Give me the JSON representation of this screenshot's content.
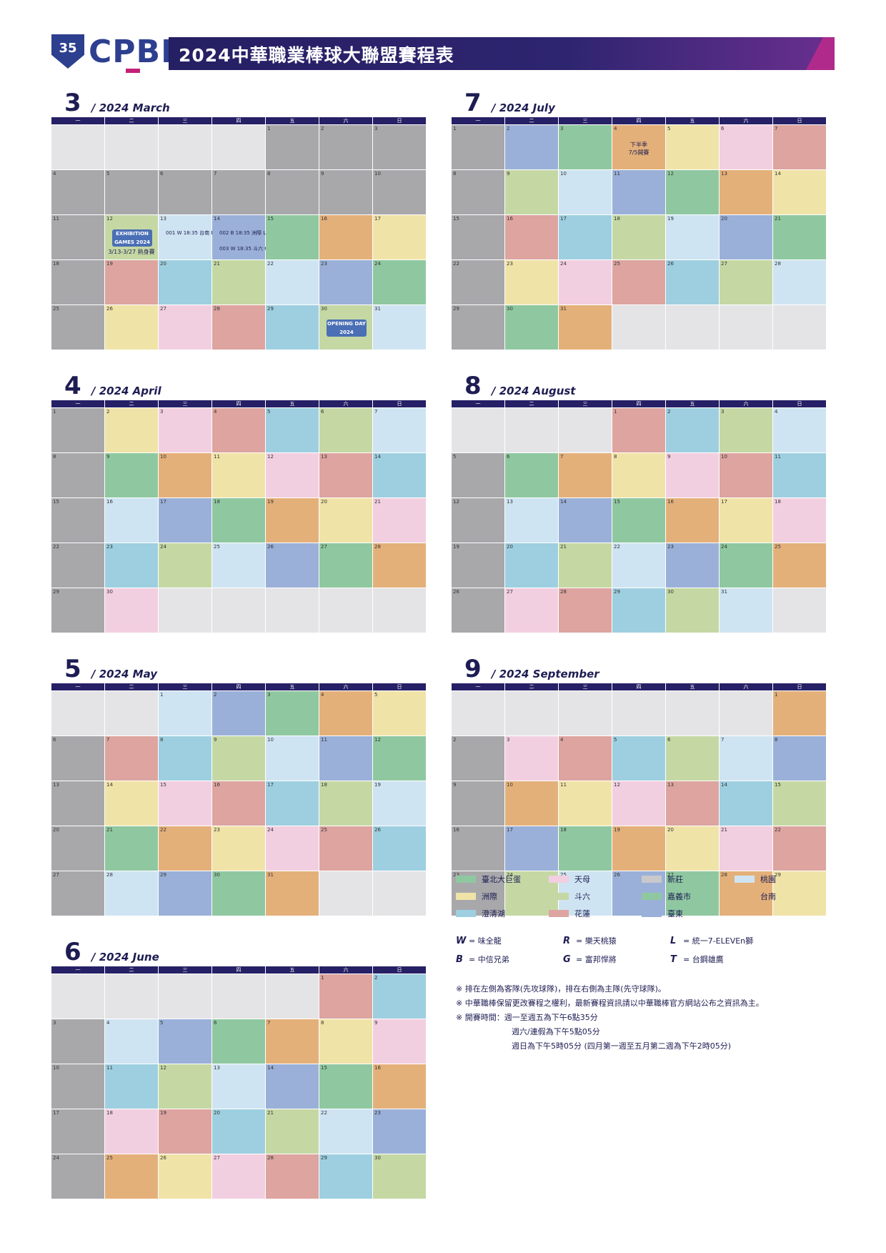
{
  "header": {
    "logo_text": "CPBL",
    "logo_badge": "35",
    "title": "2024中華職業棒球大聯盟賽程表"
  },
  "weekdays": [
    "一",
    "二",
    "三",
    "四",
    "五",
    "六",
    "日"
  ],
  "months": [
    {
      "num": "3",
      "name": "/ 2024 March"
    },
    {
      "num": "7",
      "name": "/ 2024 July"
    },
    {
      "num": "4",
      "name": "/ 2024 April"
    },
    {
      "num": "8",
      "name": "/ 2024 August"
    },
    {
      "num": "5",
      "name": "/ 2024 May"
    },
    {
      "num": "9",
      "name": "/ 2024 September"
    },
    {
      "num": "6",
      "name": "/ 2024 June"
    }
  ],
  "special": {
    "exhibition": "EXHIBITION GAMES 2024",
    "exhibition_note": "3/13-3/27 熱身賽",
    "opening": "OPENING DAY 2024",
    "second_half": "下半季\n7/5開賽"
  },
  "sample_games": {
    "g1": "001 W 18:35 台南 B",
    "g2": "002 B 18:35 洲際 L",
    "g3": "003 W 18:35 斗六 G"
  },
  "legend": {
    "venues": [
      {
        "name": "臺北大巨蛋",
        "color": "#8fc8a0"
      },
      {
        "name": "天母",
        "color": "#f2cfe0"
      },
      {
        "name": "新莊",
        "color": "#c9c9cb"
      },
      {
        "name": "桃園",
        "color": "#cfe4f2"
      },
      {
        "name": "洲際",
        "color": "#f0e3a8"
      },
      {
        "name": "斗六",
        "color": "#c5d8a4"
      },
      {
        "name": "嘉義市",
        "color": "#8fc8a0"
      },
      {
        "name": "台南",
        "color": "#e4b07a"
      },
      {
        "name": "澄清湖",
        "color": "#9dcfe0"
      },
      {
        "name": "花蓮",
        "color": "#dda4a0"
      },
      {
        "name": "臺東",
        "color": "#9ab0d8"
      }
    ],
    "teams": [
      {
        "symbol": "W",
        "name": "= 味全龍"
      },
      {
        "symbol": "R",
        "name": "= 樂天桃猿"
      },
      {
        "symbol": "L",
        "name": "= 統一7-ELEVEn獅"
      },
      {
        "symbol": "B",
        "name": "= 中信兄弟"
      },
      {
        "symbol": "G",
        "name": "= 富邦悍將"
      },
      {
        "symbol": "T",
        "name": "= 台鋼雄鷹"
      }
    ],
    "notes": [
      "※ 排在左側為客隊(先攻球隊)，排在右側為主隊(先守球隊)。",
      "※ 中華職棒保留更改賽程之權利，最新賽程資訊請以中華職棒官方網站公布之資訊為主。",
      "※ 開賽時間：週一至週五為下午6點35分",
      "週六/連假為下午5點05分",
      "週日為下午5時05分 (四月第一週至五月第二週為下午2時05分)"
    ]
  }
}
